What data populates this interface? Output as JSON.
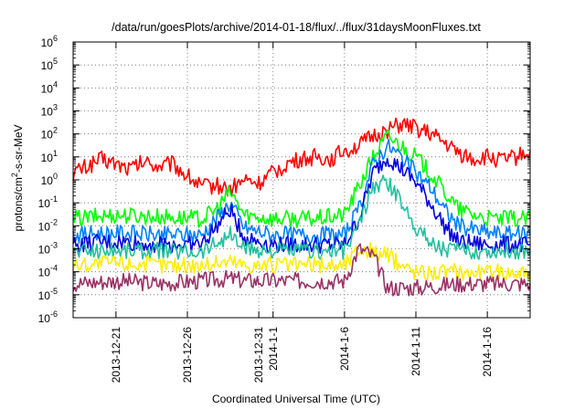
{
  "chart_data": {
    "type": "line",
    "title": "/data/run/goesPlots/archive/2014-01-18/flux/../flux/31daysMoonFluxes.txt",
    "xlabel": "Coordinated Universal Time (UTC)",
    "ylabel_main": "protons/cm",
    "ylabel_sup": "2",
    "ylabel_tail": "-s-sr-MeV",
    "y_scale": "log",
    "ylim": [
      1e-06,
      1000000
    ],
    "xlim": [
      "2013-12-18",
      "2014-01-19"
    ],
    "grid": "dotted",
    "y_ticks": [
      {
        "value": 1e-06,
        "base": "10",
        "exp": "-6"
      },
      {
        "value": 1e-05,
        "base": "10",
        "exp": "-5"
      },
      {
        "value": 0.0001,
        "base": "10",
        "exp": "-4"
      },
      {
        "value": 0.001,
        "base": "10",
        "exp": "-3"
      },
      {
        "value": 0.01,
        "base": "10",
        "exp": "-2"
      },
      {
        "value": 0.1,
        "base": "10",
        "exp": "-1"
      },
      {
        "value": 1,
        "base": "10",
        "exp": "0"
      },
      {
        "value": 10,
        "base": "10",
        "exp": "1"
      },
      {
        "value": 100,
        "base": "10",
        "exp": "2"
      },
      {
        "value": 1000,
        "base": "10",
        "exp": "3"
      },
      {
        "value": 10000,
        "base": "10",
        "exp": "4"
      },
      {
        "value": 100000,
        "base": "10",
        "exp": "5"
      },
      {
        "value": 1000000,
        "base": "10",
        "exp": "6"
      }
    ],
    "x_ticks": [
      {
        "date": "2013-12-21",
        "label": "2013-12-21"
      },
      {
        "date": "2013-12-26",
        "label": "2013-12-26"
      },
      {
        "date": "2013-12-31",
        "label": "2013-12-31"
      },
      {
        "date": "2014-01-01",
        "label": "2014-1-1"
      },
      {
        "date": "2014-01-06",
        "label": "2014-1-6"
      },
      {
        "date": "2014-01-11",
        "label": "2014-1-11"
      },
      {
        "date": "2014-01-16",
        "label": "2014-1-16"
      }
    ],
    "series": [
      {
        "color": "#ff0000",
        "points": [
          [
            "2013-12-18",
            2.0
          ],
          [
            "2013-12-19",
            4.0
          ],
          [
            "2013-12-20",
            8.0
          ],
          [
            "2013-12-21",
            5.0
          ],
          [
            "2013-12-22",
            3.0
          ],
          [
            "2013-12-23",
            6.0
          ],
          [
            "2013-12-24",
            4.0
          ],
          [
            "2013-12-25",
            5.0
          ],
          [
            "2013-12-26",
            1.5
          ],
          [
            "2013-12-27",
            0.5
          ],
          [
            "2013-12-28",
            0.6
          ],
          [
            "2013-12-29",
            0.4
          ],
          [
            "2013-12-30",
            1.0
          ],
          [
            "2013-12-31",
            0.7
          ],
          [
            "2014-01-01",
            2.0
          ],
          [
            "2014-01-02",
            5.0
          ],
          [
            "2014-01-03",
            8.0
          ],
          [
            "2014-01-04",
            10.0
          ],
          [
            "2014-01-05",
            8.0
          ],
          [
            "2014-01-06",
            20.0
          ],
          [
            "2014-01-07",
            30.0
          ],
          [
            "2014-01-08",
            80.0
          ],
          [
            "2014-01-09",
            150.0
          ],
          [
            "2014-01-10",
            250.0
          ],
          [
            "2014-01-11",
            180.0
          ],
          [
            "2014-01-12",
            100.0
          ],
          [
            "2014-01-13",
            40.0
          ],
          [
            "2014-01-14",
            15.0
          ],
          [
            "2014-01-15",
            8.0
          ],
          [
            "2014-01-16",
            10.0
          ],
          [
            "2014-01-17",
            7.0
          ],
          [
            "2014-01-18",
            10.0
          ],
          [
            "2014-01-19",
            18.0
          ]
        ]
      },
      {
        "color": "#00ff00",
        "points": [
          [
            "2013-12-18",
            0.02
          ],
          [
            "2013-12-21",
            0.03
          ],
          [
            "2013-12-24",
            0.025
          ],
          [
            "2013-12-27",
            0.02
          ],
          [
            "2013-12-28",
            0.05
          ],
          [
            "2013-12-29",
            0.3
          ],
          [
            "2013-12-30",
            0.03
          ],
          [
            "2014-01-01",
            0.02
          ],
          [
            "2014-01-04",
            0.02
          ],
          [
            "2014-01-06",
            0.03
          ],
          [
            "2014-01-07",
            0.5
          ],
          [
            "2014-01-08",
            10.0
          ],
          [
            "2014-01-09",
            80.0
          ],
          [
            "2014-01-10",
            30.0
          ],
          [
            "2014-01-11",
            10.0
          ],
          [
            "2014-01-12",
            2.0
          ],
          [
            "2014-01-13",
            0.3
          ],
          [
            "2014-01-14",
            0.05
          ],
          [
            "2014-01-16",
            0.02
          ],
          [
            "2014-01-19",
            0.02
          ]
        ]
      },
      {
        "color": "#0080ff",
        "points": [
          [
            "2013-12-18",
            0.004
          ],
          [
            "2013-12-21",
            0.005
          ],
          [
            "2013-12-24",
            0.004
          ],
          [
            "2013-12-27",
            0.004
          ],
          [
            "2013-12-29",
            0.1
          ],
          [
            "2013-12-30",
            0.008
          ],
          [
            "2014-01-01",
            0.004
          ],
          [
            "2014-01-04",
            0.004
          ],
          [
            "2014-01-06",
            0.004
          ],
          [
            "2014-01-07",
            0.05
          ],
          [
            "2014-01-08",
            5.0
          ],
          [
            "2014-01-09",
            30.0
          ],
          [
            "2014-01-10",
            10.0
          ],
          [
            "2014-01-11",
            2.0
          ],
          [
            "2014-01-12",
            0.5
          ],
          [
            "2014-01-13",
            0.05
          ],
          [
            "2014-01-14",
            0.01
          ],
          [
            "2014-01-16",
            0.005
          ],
          [
            "2014-01-19",
            0.004
          ]
        ]
      },
      {
        "color": "#0000dd",
        "points": [
          [
            "2013-12-18",
            0.0015
          ],
          [
            "2013-12-21",
            0.002
          ],
          [
            "2013-12-24",
            0.0015
          ],
          [
            "2013-12-27",
            0.0015
          ],
          [
            "2013-12-29",
            0.05
          ],
          [
            "2013-12-30",
            0.003
          ],
          [
            "2014-01-01",
            0.0015
          ],
          [
            "2014-01-04",
            0.0015
          ],
          [
            "2014-01-06",
            0.0015
          ],
          [
            "2014-01-07",
            0.02
          ],
          [
            "2014-01-08",
            2.0
          ],
          [
            "2014-01-09",
            10.0
          ],
          [
            "2014-01-10",
            3.0
          ],
          [
            "2014-01-11",
            0.8
          ],
          [
            "2014-01-12",
            0.1
          ],
          [
            "2014-01-13",
            0.01
          ],
          [
            "2014-01-14",
            0.002
          ],
          [
            "2014-01-16",
            0.0015
          ],
          [
            "2014-01-19",
            0.0015
          ]
        ]
      },
      {
        "color": "#20c0a0",
        "points": [
          [
            "2013-12-18",
            0.0008
          ],
          [
            "2013-12-21",
            0.0009
          ],
          [
            "2013-12-24",
            0.0008
          ],
          [
            "2013-12-27",
            0.0008
          ],
          [
            "2013-12-29",
            0.004
          ],
          [
            "2013-12-30",
            0.001
          ],
          [
            "2014-01-01",
            0.0008
          ],
          [
            "2014-01-04",
            0.0008
          ],
          [
            "2014-01-06",
            0.0008
          ],
          [
            "2014-01-07",
            0.01
          ],
          [
            "2014-01-08",
            0.5
          ],
          [
            "2014-01-09",
            0.8
          ],
          [
            "2014-01-10",
            0.1
          ],
          [
            "2014-01-11",
            0.01
          ],
          [
            "2014-01-12",
            0.002
          ],
          [
            "2014-01-13",
            0.001
          ],
          [
            "2014-01-14",
            0.0008
          ],
          [
            "2014-01-16",
            0.0008
          ],
          [
            "2014-01-19",
            0.0008
          ]
        ]
      },
      {
        "color": "#ffee00",
        "points": [
          [
            "2013-12-18",
            0.0002
          ],
          [
            "2013-12-21",
            0.00025
          ],
          [
            "2013-12-24",
            0.0002
          ],
          [
            "2013-12-27",
            0.0002
          ],
          [
            "2013-12-29",
            0.0003
          ],
          [
            "2013-12-30",
            0.0002
          ],
          [
            "2014-01-01",
            0.0002
          ],
          [
            "2014-01-04",
            0.0002
          ],
          [
            "2014-01-06",
            0.0002
          ],
          [
            "2014-01-07",
            0.001
          ],
          [
            "2014-01-08",
            0.0008
          ],
          [
            "2014-01-09",
            0.0005
          ],
          [
            "2014-01-10",
            0.0002
          ],
          [
            "2014-01-11",
            0.0001
          ],
          [
            "2014-01-12",
            0.0001
          ],
          [
            "2014-01-14",
            0.0001
          ],
          [
            "2014-01-16",
            0.0001
          ],
          [
            "2014-01-19",
            0.0001
          ]
        ]
      },
      {
        "color": "#993366",
        "points": [
          [
            "2013-12-18",
            3e-05
          ],
          [
            "2013-12-21",
            4e-05
          ],
          [
            "2013-12-24",
            3e-05
          ],
          [
            "2013-12-27",
            4e-05
          ],
          [
            "2013-12-29",
            5e-05
          ],
          [
            "2013-12-30",
            4e-05
          ],
          [
            "2014-01-01",
            4e-05
          ],
          [
            "2014-01-04",
            4e-05
          ],
          [
            "2014-01-06",
            4e-05
          ],
          [
            "2014-01-07",
            0.001
          ],
          [
            "2014-01-08",
            0.0005
          ],
          [
            "2014-01-09",
            2e-05
          ],
          [
            "2014-01-10",
            2e-05
          ],
          [
            "2014-01-11",
            2e-05
          ],
          [
            "2014-01-14",
            3e-05
          ],
          [
            "2014-01-16",
            3e-05
          ],
          [
            "2014-01-19",
            3e-05
          ]
        ]
      }
    ]
  }
}
